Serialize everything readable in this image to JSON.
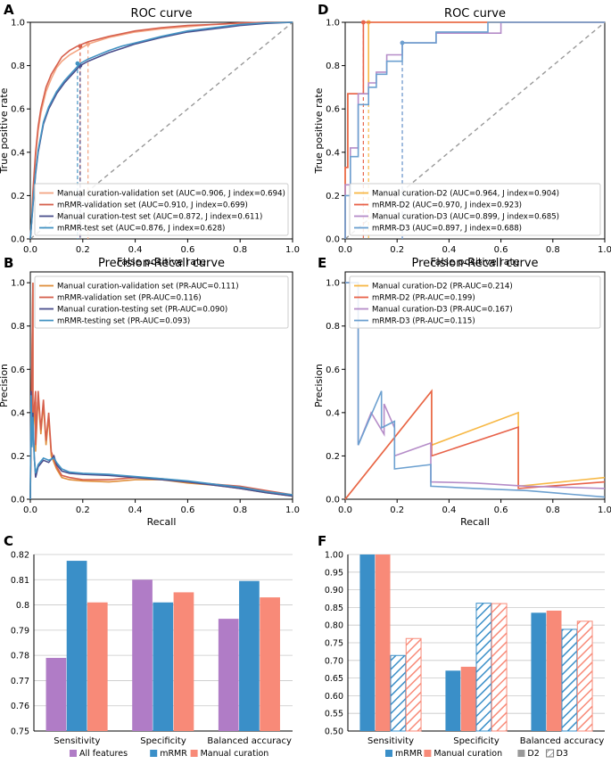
{
  "chart_data": [
    {
      "panel": "A",
      "type": "line",
      "title": "ROC curve",
      "xlabel": "False positive rate",
      "ylabel": "True positive rate",
      "xlim": [
        0,
        1
      ],
      "ylim": [
        0,
        1
      ],
      "xticks": [
        "0.0",
        "0.2",
        "0.4",
        "0.6",
        "0.8",
        "1.0"
      ],
      "yticks": [
        "0.0",
        "0.2",
        "0.4",
        "0.6",
        "0.8",
        "1.0"
      ],
      "legend_position": "lower-right",
      "series": [
        {
          "name": "Manual curation-validation set (AUC=0.906, J index=0.694)",
          "color": "#f4a582",
          "x": [
            0,
            0.005,
            0.01,
            0.02,
            0.03,
            0.04,
            0.05,
            0.06,
            0.08,
            0.1,
            0.12,
            0.15,
            0.18,
            0.22,
            0.3,
            0.4,
            0.5,
            0.6,
            0.7,
            0.8,
            0.9,
            1.0
          ],
          "y": [
            0,
            0.08,
            0.2,
            0.38,
            0.5,
            0.58,
            0.63,
            0.68,
            0.74,
            0.79,
            0.82,
            0.85,
            0.87,
            0.9,
            0.93,
            0.955,
            0.97,
            0.98,
            0.99,
            0.995,
            1.0,
            1.0
          ],
          "threshold": [
            0.22,
            0.9
          ]
        },
        {
          "name": "mRMR-validation set (AUC=0.910, J index=0.699)",
          "color": "#d6604d",
          "x": [
            0,
            0.005,
            0.01,
            0.02,
            0.03,
            0.04,
            0.05,
            0.06,
            0.08,
            0.1,
            0.12,
            0.15,
            0.18,
            0.22,
            0.3,
            0.4,
            0.5,
            0.6,
            0.7,
            0.8,
            0.9,
            1.0
          ],
          "y": [
            0,
            0.09,
            0.22,
            0.4,
            0.52,
            0.6,
            0.65,
            0.7,
            0.76,
            0.8,
            0.84,
            0.87,
            0.89,
            0.91,
            0.935,
            0.96,
            0.975,
            0.985,
            0.99,
            0.997,
            1.0,
            1.0
          ],
          "threshold": [
            0.19,
            0.89
          ]
        },
        {
          "name": "Manual curation-test set (AUC=0.872, J index=0.611)",
          "color": "#4a4e8c",
          "x": [
            0,
            0.01,
            0.02,
            0.03,
            0.05,
            0.07,
            0.1,
            0.13,
            0.16,
            0.19,
            0.22,
            0.26,
            0.3,
            0.35,
            0.4,
            0.5,
            0.6,
            0.7,
            0.8,
            0.9,
            1.0
          ],
          "y": [
            0,
            0.15,
            0.3,
            0.4,
            0.53,
            0.6,
            0.67,
            0.72,
            0.76,
            0.8,
            0.82,
            0.84,
            0.86,
            0.88,
            0.9,
            0.93,
            0.955,
            0.97,
            0.985,
            0.995,
            1.0
          ],
          "threshold": [
            0.19,
            0.8
          ]
        },
        {
          "name": "mRMR-test set (AUC=0.876, J index=0.628)",
          "color": "#4393c3",
          "x": [
            0,
            0.01,
            0.02,
            0.03,
            0.05,
            0.07,
            0.1,
            0.13,
            0.16,
            0.19,
            0.22,
            0.26,
            0.3,
            0.35,
            0.4,
            0.5,
            0.6,
            0.7,
            0.8,
            0.9,
            1.0
          ],
          "y": [
            0,
            0.16,
            0.31,
            0.41,
            0.54,
            0.61,
            0.68,
            0.73,
            0.77,
            0.81,
            0.83,
            0.85,
            0.87,
            0.89,
            0.905,
            0.935,
            0.96,
            0.975,
            0.99,
            0.998,
            1.0
          ],
          "threshold": [
            0.18,
            0.81
          ]
        }
      ]
    },
    {
      "panel": "B",
      "type": "line",
      "title": "Precision-Recall curve",
      "xlabel": "Recall",
      "ylabel": "Precision",
      "xlim": [
        0,
        1
      ],
      "ylim": [
        0,
        1.05
      ],
      "xticks": [
        "0.0",
        "0.2",
        "0.4",
        "0.6",
        "0.8",
        "1.0"
      ],
      "yticks": [
        "0.0",
        "0.2",
        "0.4",
        "0.6",
        "0.8",
        "1.0"
      ],
      "legend_position": "upper-right",
      "series": [
        {
          "name": "Manual curation-validation set (PR-AUC=0.111)",
          "color": "#e08f3c",
          "x": [
            0,
            0.01,
            0.01,
            0.02,
            0.02,
            0.03,
            0.04,
            0.05,
            0.06,
            0.07,
            0.08,
            0.1,
            0.12,
            0.15,
            0.2,
            0.3,
            0.4,
            0.5,
            0.6,
            0.7,
            0.8,
            0.9,
            1.0
          ],
          "y": [
            0,
            1.0,
            0.3,
            0.45,
            0.22,
            0.48,
            0.3,
            0.44,
            0.25,
            0.38,
            0.2,
            0.14,
            0.1,
            0.09,
            0.085,
            0.08,
            0.09,
            0.09,
            0.075,
            0.065,
            0.05,
            0.03,
            0.015
          ]
        },
        {
          "name": "mRMR-validation set (PR-AUC=0.116)",
          "color": "#d6604d",
          "x": [
            0,
            0.01,
            0.01,
            0.02,
            0.02,
            0.03,
            0.04,
            0.05,
            0.06,
            0.07,
            0.08,
            0.1,
            0.12,
            0.15,
            0.2,
            0.3,
            0.4,
            0.5,
            0.6,
            0.7,
            0.8,
            0.9,
            1.0
          ],
          "y": [
            0,
            1.0,
            0.35,
            0.5,
            0.25,
            0.5,
            0.32,
            0.46,
            0.27,
            0.4,
            0.22,
            0.15,
            0.11,
            0.1,
            0.09,
            0.09,
            0.1,
            0.095,
            0.08,
            0.07,
            0.06,
            0.04,
            0.02
          ]
        },
        {
          "name": "Manual curation-testing set (PR-AUC=0.090)",
          "color": "#4a4e8c",
          "x": [
            0,
            0.003,
            0.006,
            0.01,
            0.015,
            0.02,
            0.03,
            0.05,
            0.07,
            0.09,
            0.1,
            0.12,
            0.15,
            0.2,
            0.3,
            0.4,
            0.5,
            0.6,
            0.7,
            0.8,
            0.9,
            1.0
          ],
          "y": [
            0,
            0.5,
            0.25,
            0.4,
            0.2,
            0.1,
            0.15,
            0.18,
            0.17,
            0.2,
            0.16,
            0.13,
            0.12,
            0.115,
            0.11,
            0.1,
            0.09,
            0.08,
            0.065,
            0.05,
            0.03,
            0.015
          ]
        },
        {
          "name": "mRMR-testing set (PR-AUC=0.093)",
          "color": "#4393c3",
          "x": [
            0,
            0.003,
            0.006,
            0.01,
            0.015,
            0.02,
            0.03,
            0.05,
            0.07,
            0.09,
            0.1,
            0.12,
            0.15,
            0.2,
            0.3,
            0.4,
            0.5,
            0.6,
            0.7,
            0.8,
            0.9,
            1.0
          ],
          "y": [
            0,
            0.48,
            0.24,
            0.38,
            0.19,
            0.12,
            0.16,
            0.19,
            0.18,
            0.19,
            0.17,
            0.14,
            0.125,
            0.12,
            0.115,
            0.105,
            0.095,
            0.085,
            0.07,
            0.055,
            0.035,
            0.02
          ]
        }
      ]
    },
    {
      "panel": "C",
      "type": "bar",
      "categories": [
        "Sensitivity",
        "Specificity",
        "Balanced accuracy"
      ],
      "ylim": [
        0.75,
        0.82
      ],
      "yticks": [
        "0.75",
        "0.76",
        "0.77",
        "0.78",
        "0.79",
        "0.8",
        "0.81",
        "0.82"
      ],
      "legend_position": "bottom",
      "series": [
        {
          "name": "All features",
          "color": "#b07cc6",
          "values": [
            0.779,
            0.81,
            0.7945
          ]
        },
        {
          "name": "mRMR",
          "color": "#3a8fc8",
          "values": [
            0.8175,
            0.801,
            0.8095
          ]
        },
        {
          "name": "Manual curation",
          "color": "#f88a78",
          "values": [
            0.801,
            0.805,
            0.803
          ]
        }
      ]
    },
    {
      "panel": "D",
      "type": "line",
      "title": "ROC curve",
      "xlabel": "False positive rate",
      "ylabel": "True positive rate",
      "xlim": [
        0,
        1
      ],
      "ylim": [
        0,
        1
      ],
      "xticks": [
        "0.0",
        "0.2",
        "0.4",
        "0.6",
        "0.8",
        "1.0"
      ],
      "yticks": [
        "0.0",
        "0.2",
        "0.4",
        "0.6",
        "0.8",
        "1.0"
      ],
      "legend_position": "lower-right",
      "series": [
        {
          "name": "Manual curation-D2 (AUC=0.964, J index=0.904)",
          "color": "#f7b845",
          "x": [
            0,
            0,
            0.01,
            0.01,
            0.09,
            0.09,
            1.0
          ],
          "y": [
            0,
            0.33,
            0.33,
            0.67,
            0.67,
            1.0,
            1.0
          ],
          "threshold": [
            0.09,
            1.0
          ]
        },
        {
          "name": "mRMR-D2 (AUC=0.970, J index=0.923)",
          "color": "#e8634a",
          "x": [
            0,
            0,
            0.01,
            0.01,
            0.07,
            0.07,
            1.0
          ],
          "y": [
            0,
            0.33,
            0.33,
            0.67,
            0.67,
            1.0,
            1.0
          ],
          "threshold": [
            0.07,
            1.0
          ]
        },
        {
          "name": "Manual curation-D3 (AUC=0.899, J index=0.685)",
          "color": "#b58cc8",
          "x": [
            0,
            0,
            0.02,
            0.02,
            0.05,
            0.05,
            0.09,
            0.09,
            0.12,
            0.12,
            0.16,
            0.16,
            0.22,
            0.22,
            0.35,
            0.35,
            0.6,
            0.6,
            1.0
          ],
          "y": [
            0,
            0.25,
            0.25,
            0.42,
            0.42,
            0.67,
            0.67,
            0.72,
            0.72,
            0.77,
            0.77,
            0.85,
            0.85,
            0.905,
            0.905,
            0.95,
            0.95,
            1.0,
            1.0
          ],
          "threshold": [
            0.22,
            0.905
          ]
        },
        {
          "name": "mRMR-D3 (AUC=0.897, J index=0.688)",
          "color": "#6ca0d0",
          "x": [
            0,
            0,
            0.02,
            0.02,
            0.05,
            0.05,
            0.09,
            0.09,
            0.12,
            0.12,
            0.16,
            0.16,
            0.22,
            0.22,
            0.35,
            0.35,
            0.55,
            0.55,
            1.0
          ],
          "y": [
            0,
            0.2,
            0.2,
            0.38,
            0.38,
            0.62,
            0.62,
            0.7,
            0.7,
            0.76,
            0.76,
            0.82,
            0.82,
            0.905,
            0.905,
            0.955,
            0.955,
            1.0,
            1.0
          ],
          "threshold": [
            0.22,
            0.905
          ]
        }
      ]
    },
    {
      "panel": "E",
      "type": "line",
      "title": "Precision-Recall curve",
      "xlabel": "Recall",
      "ylabel": "Precision",
      "xlim": [
        0,
        1
      ],
      "ylim": [
        0,
        1.05
      ],
      "xticks": [
        "0.0",
        "0.2",
        "0.4",
        "0.6",
        "0.8",
        "1.0"
      ],
      "yticks": [
        "0.0",
        "0.2",
        "0.4",
        "0.6",
        "0.8",
        "1.0"
      ],
      "legend_position": "upper-right",
      "series": [
        {
          "name": "Manual curation-D2 (PR-AUC=0.214)",
          "color": "#f7b845",
          "x": [
            0,
            0.333,
            0.333,
            0.667,
            0.667,
            1.0
          ],
          "y": [
            0,
            0.5,
            0.25,
            0.4,
            0.06,
            0.1
          ]
        },
        {
          "name": "mRMR-D2 (PR-AUC=0.199)",
          "color": "#e8634a",
          "x": [
            0,
            0.333,
            0.333,
            0.667,
            0.667,
            1.0
          ],
          "y": [
            0,
            0.5,
            0.2,
            0.333,
            0.05,
            0.08
          ]
        },
        {
          "name": "Manual curation-D3 (PR-AUC=0.167)",
          "color": "#b58cc8",
          "x": [
            0,
            0,
            0.05,
            0.05,
            0.1,
            0.15,
            0.15,
            0.19,
            0.19,
            0.33,
            0.33,
            0.5,
            0.7,
            1.0
          ],
          "y": [
            1.0,
            1.0,
            1.0,
            0.25,
            0.4,
            0.3,
            0.44,
            0.33,
            0.2,
            0.26,
            0.08,
            0.075,
            0.06,
            0.05
          ]
        },
        {
          "name": "mRMR-D3 (PR-AUC=0.115)",
          "color": "#6ca0d0",
          "x": [
            0,
            0,
            0.05,
            0.05,
            0.14,
            0.14,
            0.19,
            0.19,
            0.33,
            0.33,
            0.5,
            0.7,
            1.0
          ],
          "y": [
            1.0,
            1.0,
            1.0,
            0.25,
            0.5,
            0.33,
            0.36,
            0.14,
            0.16,
            0.06,
            0.05,
            0.04,
            0.01
          ]
        }
      ]
    },
    {
      "panel": "F",
      "type": "bar",
      "categories": [
        "Sensitivity",
        "Specificity",
        "Balanced accuracy"
      ],
      "ylim": [
        0.5,
        1.0
      ],
      "yticks": [
        "0.50",
        "0.55",
        "0.60",
        "0.65",
        "0.70",
        "0.75",
        "0.80",
        "0.85",
        "0.90",
        "0.95",
        "1.00"
      ],
      "legend_position": "bottom",
      "series": [
        {
          "name": "mRMR D2",
          "color": "#3a8fc8",
          "hatch": false,
          "values": [
            1.0,
            0.671,
            0.835
          ]
        },
        {
          "name": "Manual curation D2",
          "color": "#f88a78",
          "hatch": false,
          "values": [
            1.0,
            0.682,
            0.841
          ]
        },
        {
          "name": "mRMR D3",
          "color": "#3a8fc8",
          "hatch": true,
          "values": [
            0.714,
            0.862,
            0.788
          ]
        },
        {
          "name": "Manual curation D3",
          "color": "#f88a78",
          "hatch": true,
          "values": [
            0.762,
            0.861,
            0.811
          ]
        }
      ],
      "legend_labels": [
        "mRMR",
        "Manual curation",
        "D2",
        "D3"
      ]
    }
  ],
  "panel_labels": [
    "A",
    "B",
    "C",
    "D",
    "E",
    "F"
  ]
}
